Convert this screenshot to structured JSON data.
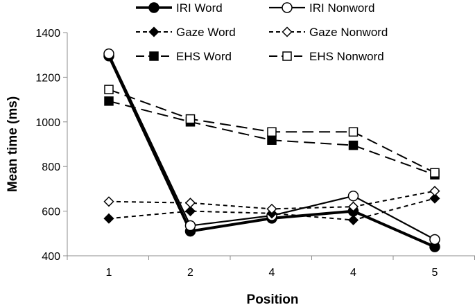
{
  "chart_data": {
    "type": "line",
    "title": "",
    "xlabel": "Position",
    "ylabel": "Mean time (ms)",
    "categories": [
      "1",
      "2",
      "4",
      "4",
      "5"
    ],
    "ylim": [
      400,
      1400
    ],
    "yticks": [
      400,
      600,
      800,
      1000,
      1200,
      1400
    ],
    "grid": false,
    "legend_position": "top",
    "series": [
      {
        "name": "IRI Word",
        "values": [
          1295,
          510,
          568,
          600,
          440
        ],
        "line": "solid",
        "marker": "circle",
        "filled": true
      },
      {
        "name": "IRI Nonword",
        "values": [
          1305,
          535,
          580,
          668,
          473
        ],
        "line": "solid",
        "marker": "circle",
        "filled": false
      },
      {
        "name": "Gaze Word",
        "values": [
          567,
          600,
          590,
          560,
          657
        ],
        "line": "short-dash",
        "marker": "diamond",
        "filled": true
      },
      {
        "name": "Gaze Nonword",
        "values": [
          643,
          637,
          610,
          620,
          690
        ],
        "line": "short-dash",
        "marker": "diamond",
        "filled": false
      },
      {
        "name": "EHS Word",
        "values": [
          1093,
          1000,
          918,
          895,
          763
        ],
        "line": "long-dash",
        "marker": "square",
        "filled": true
      },
      {
        "name": "EHS Nonword",
        "values": [
          1145,
          1013,
          955,
          955,
          772
        ],
        "line": "long-dash",
        "marker": "square",
        "filled": false
      }
    ]
  }
}
